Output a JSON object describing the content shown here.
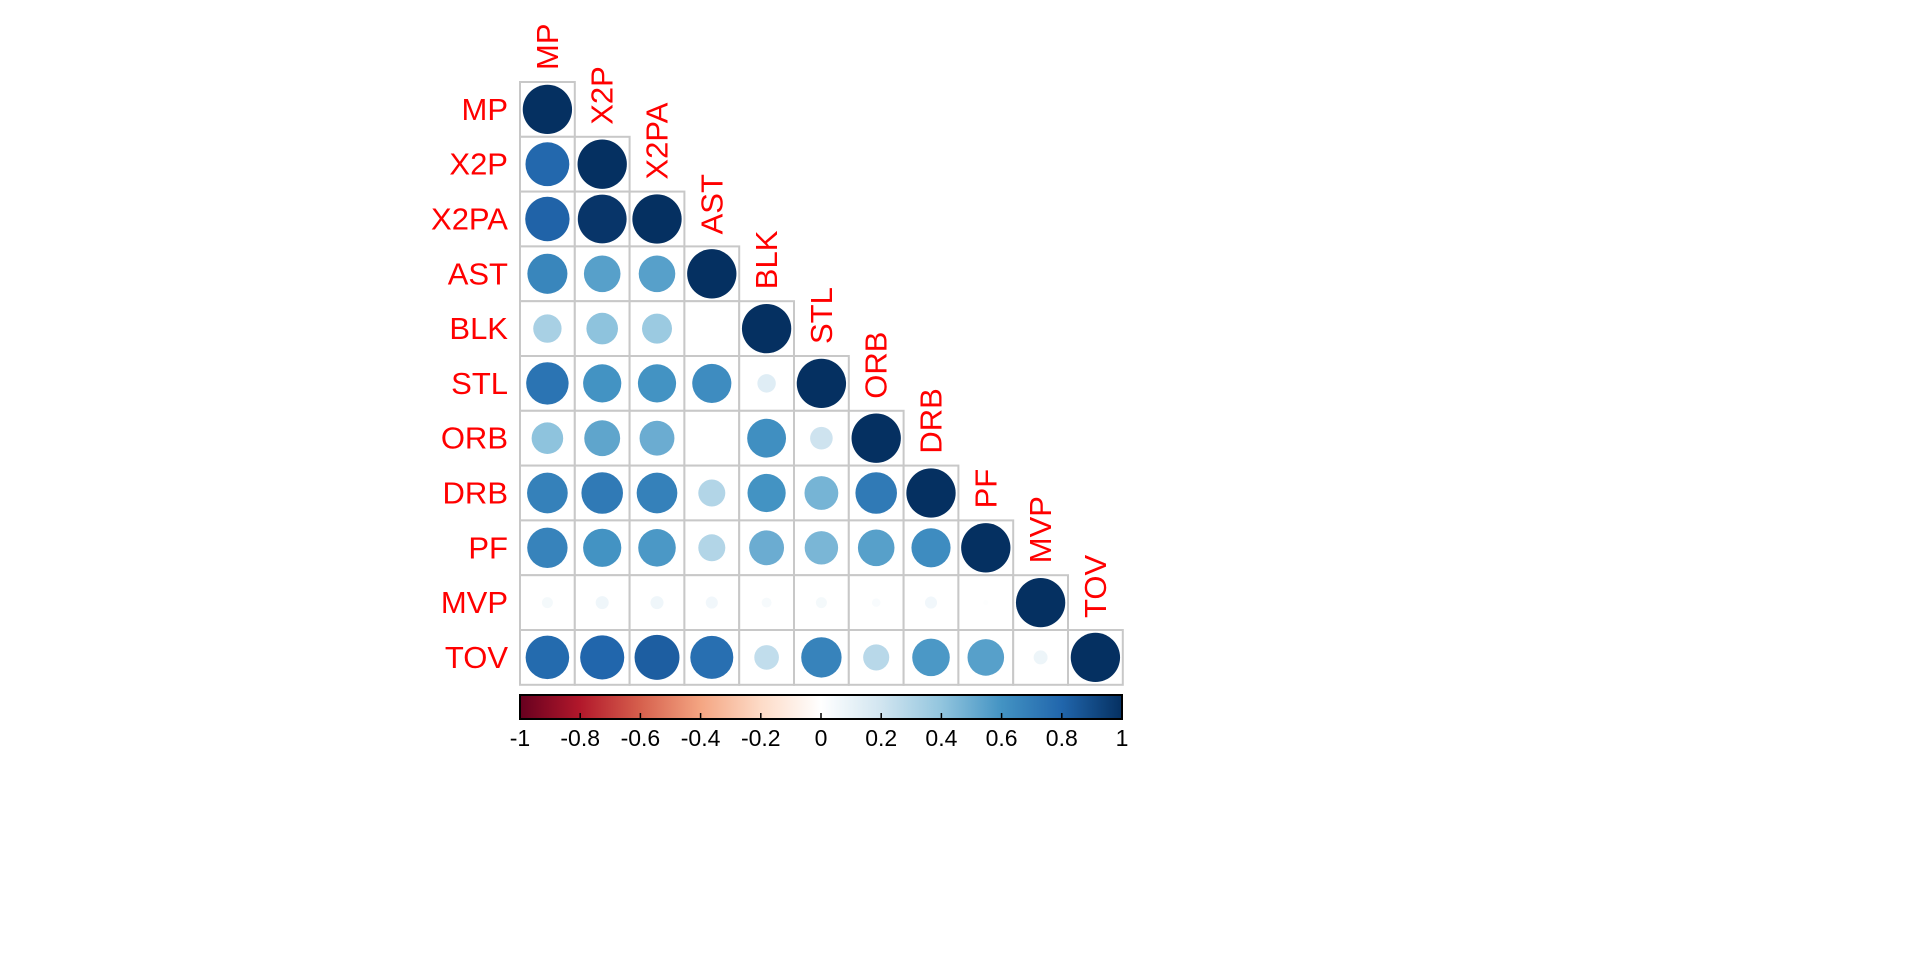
{
  "chart_data": {
    "type": "heatmap",
    "subtype": "correlation-circles-lower-triangle",
    "title": "",
    "variables": [
      "MP",
      "X2P",
      "X2PA",
      "AST",
      "BLK",
      "STL",
      "ORB",
      "DRB",
      "PF",
      "MVP",
      "TOV"
    ],
    "matrix_lower": [
      [
        1.0
      ],
      [
        0.79,
        1.0
      ],
      [
        0.81,
        0.98,
        1.0
      ],
      [
        0.66,
        0.55,
        0.55,
        1.0
      ],
      [
        0.33,
        0.41,
        0.37,
        0.0,
        1.0
      ],
      [
        0.74,
        0.6,
        0.6,
        0.63,
        0.14,
        1.0
      ],
      [
        0.41,
        0.53,
        0.5,
        0.0,
        0.62,
        0.21,
        1.0
      ],
      [
        0.68,
        0.71,
        0.68,
        0.3,
        0.6,
        0.47,
        0.71,
        1.0
      ],
      [
        0.67,
        0.6,
        0.58,
        0.3,
        0.5,
        0.46,
        0.55,
        0.63,
        1.0
      ],
      [
        0.05,
        0.07,
        0.07,
        0.06,
        0.04,
        0.05,
        0.03,
        0.06,
        0.01,
        1.0
      ],
      [
        0.78,
        0.8,
        0.83,
        0.76,
        0.25,
        0.67,
        0.28,
        0.58,
        0.55,
        0.08,
        1.0
      ]
    ],
    "colorbar": {
      "range": [
        -1,
        1
      ],
      "ticks": [
        "-1",
        "-0.8",
        "-0.6",
        "-0.4",
        "-0.2",
        "0",
        "0.2",
        "0.4",
        "0.6",
        "0.8",
        "1"
      ],
      "orientation": "horizontal",
      "placement": "bottom"
    },
    "colors": {
      "negative_end": "#67001f",
      "neutral": "#ffffff",
      "positive_end": "#053061",
      "label_color": "#ff0000",
      "grid": "#c8c8c8"
    }
  }
}
